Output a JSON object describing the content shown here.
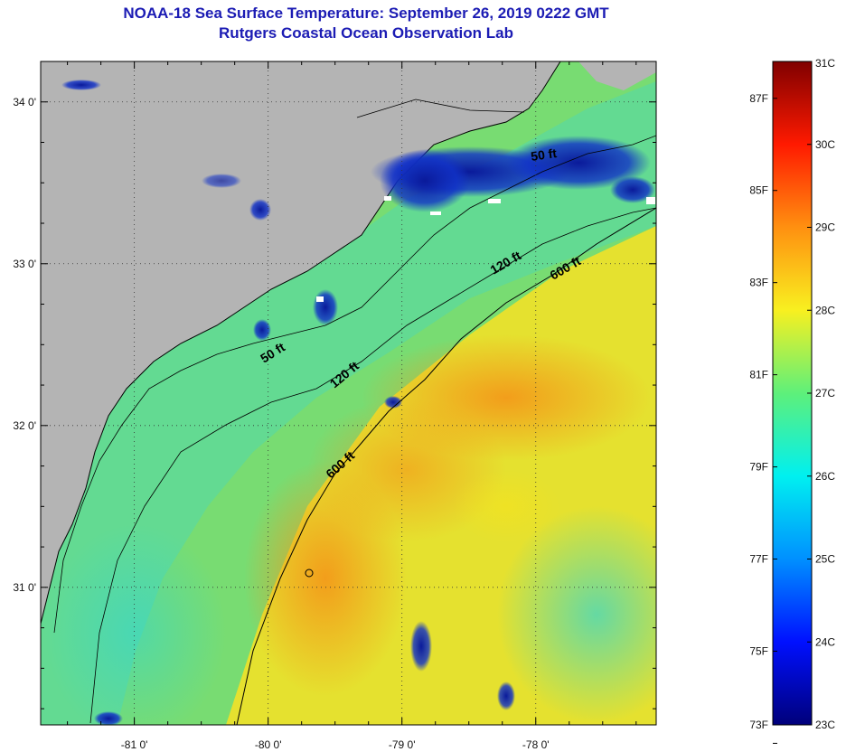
{
  "title": "NOAA-18 Sea Surface Temperature:  September 26, 2019 0222 GMT",
  "subtitle": "Rutgers Coastal Ocean Observation Lab",
  "map": {
    "lon_range": [
      -81.7,
      -77.1
    ],
    "lat_range": [
      30.15,
      34.25
    ],
    "lon_ticks": [
      {
        "value": -81,
        "label": "-81 0'"
      },
      {
        "value": -80,
        "label": "-80 0'"
      },
      {
        "value": -79,
        "label": "-79 0'"
      },
      {
        "value": -78,
        "label": "-78 0'"
      }
    ],
    "lat_ticks": [
      {
        "value": 34,
        "label": "34 0'"
      },
      {
        "value": 33,
        "label": "33 0'"
      },
      {
        "value": 32,
        "label": "32 0'"
      },
      {
        "value": 31,
        "label": "31 0'"
      }
    ],
    "contour_labels": [
      "50 ft",
      "50 ft",
      "120 ft",
      "120 ft",
      "600 ft",
      "600 ft"
    ],
    "colors": {
      "land": "#b4b4b4",
      "ocean_base": "#7de06a",
      "warm": "#f2a21e",
      "cool": "#37d8c4",
      "cloud": "#08127e",
      "contour": "#000000"
    }
  },
  "colorbar": {
    "min_c": 23,
    "max_c": 31,
    "celsius_labels": [
      "31C",
      "30C",
      "29C",
      "28C",
      "27C",
      "26C",
      "25C",
      "24C",
      "23C"
    ],
    "fahrenheit_labels": [
      "87F",
      "85F",
      "83F",
      "81F",
      "79F",
      "77F",
      "75F",
      "73F"
    ]
  }
}
